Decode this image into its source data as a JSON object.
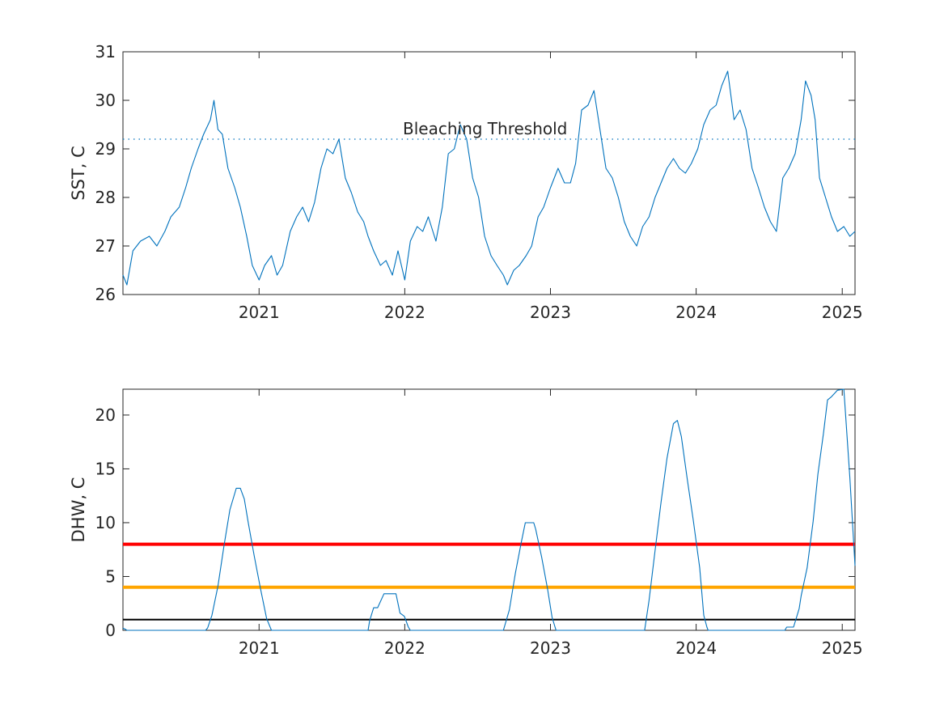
{
  "chart_data": [
    {
      "type": "line",
      "xlim": [
        "2020-01-26",
        "2025-02-02"
      ],
      "ylim": [
        26,
        31
      ],
      "yticks": [
        26,
        27,
        28,
        29,
        30,
        31
      ],
      "xticks": [
        "2021",
        "2022",
        "2023",
        "2024",
        "2025"
      ],
      "xlabel": "",
      "ylabel": "SST, C",
      "grid": false,
      "colors": {
        "series": "#0072bd",
        "threshold": "#0072bd"
      },
      "threshold": {
        "label": "Bleaching Threshold",
        "value": 29.2
      },
      "series": [
        {
          "x": [
            "2020-01-26",
            "2020-02-05",
            "2020-02-20",
            "2020-03-10",
            "2020-04-01",
            "2020-04-20",
            "2020-05-10",
            "2020-05-25",
            "2020-06-15",
            "2020-07-01",
            "2020-07-15",
            "2020-08-01",
            "2020-08-15",
            "2020-09-01",
            "2020-09-10",
            "2020-09-20",
            "2020-10-01",
            "2020-10-15",
            "2020-11-01",
            "2020-11-15",
            "2020-12-01",
            "2020-12-15",
            "2021-01-01",
            "2021-01-15",
            "2021-02-01",
            "2021-02-15",
            "2021-03-01",
            "2021-03-20",
            "2021-04-05",
            "2021-04-20",
            "2021-05-05",
            "2021-05-20",
            "2021-06-05",
            "2021-06-20",
            "2021-07-05",
            "2021-07-20",
            "2021-08-05",
            "2021-08-20",
            "2021-09-05",
            "2021-09-20",
            "2021-10-01",
            "2021-10-15",
            "2021-11-01",
            "2021-11-15",
            "2021-12-01",
            "2021-12-15",
            "2022-01-01",
            "2022-01-15",
            "2022-02-01",
            "2022-02-15",
            "2022-03-01",
            "2022-03-20",
            "2022-04-05",
            "2022-04-20",
            "2022-05-05",
            "2022-05-20",
            "2022-06-05",
            "2022-06-20",
            "2022-07-05",
            "2022-07-20",
            "2022-08-05",
            "2022-08-20",
            "2022-09-05",
            "2022-09-15",
            "2022-10-01",
            "2022-10-15",
            "2022-11-01",
            "2022-11-15",
            "2022-12-01",
            "2022-12-15",
            "2023-01-01",
            "2023-01-20",
            "2023-02-05",
            "2023-02-20",
            "2023-03-05",
            "2023-03-20",
            "2023-04-05",
            "2023-04-20",
            "2023-05-05",
            "2023-05-20",
            "2023-06-05",
            "2023-06-20",
            "2023-07-05",
            "2023-07-20",
            "2023-08-05",
            "2023-08-20",
            "2023-09-05",
            "2023-09-20",
            "2023-10-05",
            "2023-10-20",
            "2023-11-05",
            "2023-11-20",
            "2023-12-05",
            "2023-12-20",
            "2024-01-05",
            "2024-01-20",
            "2024-02-05",
            "2024-02-20",
            "2024-03-05",
            "2024-03-20",
            "2024-04-05",
            "2024-04-20",
            "2024-05-05",
            "2024-05-20",
            "2024-06-05",
            "2024-06-20",
            "2024-07-05",
            "2024-07-20",
            "2024-08-05",
            "2024-08-20",
            "2024-09-05",
            "2024-09-20",
            "2024-10-01",
            "2024-10-15",
            "2024-10-25",
            "2024-11-05",
            "2024-11-20",
            "2024-12-05",
            "2024-12-20",
            "2025-01-05",
            "2025-01-20",
            "2025-02-02"
          ],
          "y": [
            26.4,
            26.2,
            26.9,
            27.1,
            27.2,
            27.0,
            27.3,
            27.6,
            27.8,
            28.2,
            28.6,
            29.0,
            29.3,
            29.6,
            30.0,
            29.4,
            29.3,
            28.6,
            28.2,
            27.8,
            27.2,
            26.6,
            26.3,
            26.6,
            26.8,
            26.4,
            26.6,
            27.3,
            27.6,
            27.8,
            27.5,
            27.9,
            28.6,
            29.0,
            28.9,
            29.2,
            28.4,
            28.1,
            27.7,
            27.5,
            27.2,
            26.9,
            26.6,
            26.7,
            26.4,
            26.9,
            26.3,
            27.1,
            27.4,
            27.3,
            27.6,
            27.1,
            27.8,
            28.9,
            29.0,
            29.5,
            29.2,
            28.4,
            28.0,
            27.2,
            26.8,
            26.6,
            26.4,
            26.2,
            26.5,
            26.6,
            26.8,
            27.0,
            27.6,
            27.8,
            28.2,
            28.6,
            28.3,
            28.3,
            28.7,
            29.8,
            29.9,
            30.2,
            29.4,
            28.6,
            28.4,
            28.0,
            27.5,
            27.2,
            27.0,
            27.4,
            27.6,
            28.0,
            28.3,
            28.6,
            28.8,
            28.6,
            28.5,
            28.7,
            29.0,
            29.5,
            29.8,
            29.9,
            30.3,
            30.6,
            29.6,
            29.8,
            29.4,
            28.6,
            28.2,
            27.8,
            27.5,
            27.3,
            28.4,
            28.6,
            28.9,
            29.6,
            30.4,
            30.1,
            29.6,
            28.4,
            28.0,
            27.6,
            27.3,
            27.4,
            27.2,
            27.3
          ]
        }
      ]
    },
    {
      "type": "line",
      "xlim": [
        "2020-01-26",
        "2025-02-02"
      ],
      "ylim": [
        0,
        22.4
      ],
      "yticks": [
        0,
        5,
        10,
        15,
        20
      ],
      "xticks": [
        "2021",
        "2022",
        "2023",
        "2024",
        "2025"
      ],
      "xlabel": "",
      "ylabel": "DHW, C",
      "grid": false,
      "colors": {
        "series": "#0072bd",
        "line_8": "#ff0000",
        "line_4": "#ffa500",
        "line_1": "#000000"
      },
      "reference_lines": [
        {
          "value": 8,
          "color": "#ff0000"
        },
        {
          "value": 4,
          "color": "#ffa500"
        },
        {
          "value": 1,
          "color": "#000000"
        }
      ],
      "series": [
        {
          "x": [
            "2020-01-26",
            "2020-02-01",
            "2020-02-05",
            "2020-08-20",
            "2020-08-25",
            "2020-09-05",
            "2020-09-20",
            "2020-10-05",
            "2020-10-20",
            "2020-11-05",
            "2020-11-15",
            "2020-11-25",
            "2020-12-05",
            "2020-12-20",
            "2021-01-05",
            "2021-01-20",
            "2021-02-01",
            "2021-10-01",
            "2021-10-05",
            "2021-10-15",
            "2021-10-25",
            "2021-11-10",
            "2021-12-10",
            "2021-12-20",
            "2021-12-31",
            "2022-01-10",
            "2022-01-15",
            "2022-09-05",
            "2022-09-20",
            "2022-10-05",
            "2022-10-20",
            "2022-10-30",
            "2022-11-05",
            "2022-11-20",
            "2022-11-25",
            "2022-12-10",
            "2022-12-25",
            "2023-01-05",
            "2023-01-15",
            "2023-08-25",
            "2023-09-05",
            "2023-09-20",
            "2023-10-05",
            "2023-10-20",
            "2023-11-05",
            "2023-11-15",
            "2023-11-25",
            "2023-12-10",
            "2023-12-25",
            "2024-01-10",
            "2024-01-20",
            "2024-01-28",
            "2024-01-31",
            "2024-08-10",
            "2024-08-15",
            "2024-09-01",
            "2024-09-15",
            "2024-09-20",
            "2024-10-05",
            "2024-10-20",
            "2024-11-01",
            "2024-11-15",
            "2024-11-25",
            "2024-12-05",
            "2024-12-20",
            "2025-01-05",
            "2025-01-20",
            "2025-02-02"
          ],
          "y": [
            0.2,
            0.1,
            0,
            0,
            0.2,
            1.4,
            4.1,
            7.8,
            11.2,
            13.2,
            13.2,
            12.2,
            10.0,
            6.9,
            3.8,
            1.1,
            0,
            0,
            0.9,
            2.1,
            2.1,
            3.4,
            3.4,
            1.6,
            1.3,
            0.3,
            0,
            0,
            1.9,
            5.3,
            8.2,
            10.0,
            10.0,
            10.0,
            9.4,
            6.8,
            3.8,
            1.2,
            0,
            0,
            2.8,
            7.4,
            11.9,
            16.0,
            19.2,
            19.5,
            18.0,
            14.0,
            10.2,
            5.8,
            1.4,
            0.3,
            0,
            0,
            0.3,
            0.3,
            2.0,
            3.2,
            5.8,
            10.1,
            14.5,
            18.3,
            21.4,
            21.7,
            22.3,
            22.4,
            14.2,
            6.0
          ]
        }
      ]
    }
  ]
}
